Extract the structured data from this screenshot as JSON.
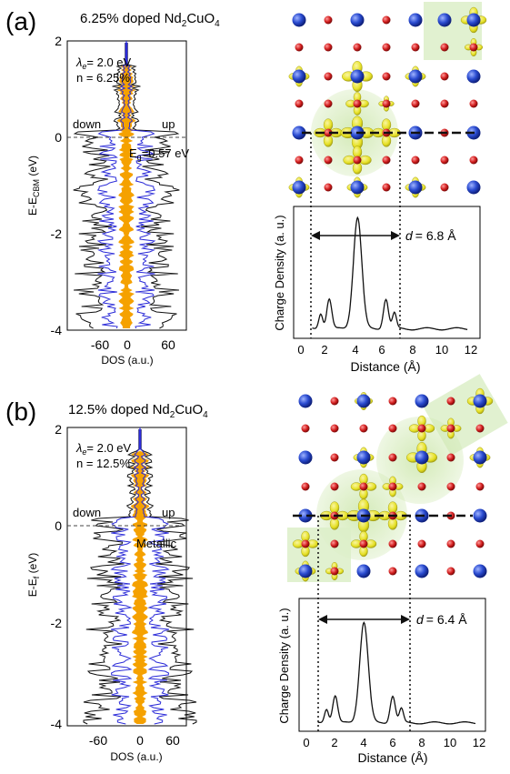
{
  "panels": [
    {
      "letter": "(a)",
      "title": "6.25% doped Nd",
      "title_sub": "2",
      "title_mid": "CuO",
      "title_sub2": "4",
      "dos": {
        "ylabel": "E-E",
        "ylabel_sub": "CBM",
        "ylabel_unit": " (eV)",
        "xlabel": "DOS (a.u.)",
        "yticks": [
          "2",
          "0",
          "-2",
          "-4"
        ],
        "xticks": [
          "-60",
          "0",
          "60"
        ],
        "lambda": "= 2.0 eV",
        "n": "n = 6.25%",
        "down": "down",
        "up": "up",
        "gap": "E",
        "gap_sub": "g",
        "gap_value": "=0.57 eV"
      },
      "charge": {
        "ylabel": "Charge Density (a. u.)",
        "xlabel": "Distance (Å)",
        "xticks": [
          "0",
          "2",
          "4",
          "6",
          "8",
          "10",
          "12"
        ],
        "d_label": "d",
        "d_value": "= 6.8 Å"
      }
    },
    {
      "letter": "(b)",
      "title": "12.5% doped Nd",
      "title_sub": "2",
      "title_mid": "CuO",
      "title_sub2": "4",
      "dos": {
        "ylabel": "E-E",
        "ylabel_sub": "f",
        "ylabel_unit": " (eV)",
        "xlabel": "DOS (a.u.)",
        "yticks": [
          "2",
          "0",
          "-2",
          "-4"
        ],
        "xticks": [
          "-60",
          "0",
          "60"
        ],
        "lambda": "= 2.0 eV",
        "n": "n = 12.5%",
        "down": "down",
        "up": "up",
        "metallic": "Metallic"
      },
      "charge": {
        "ylabel": "Charge Density (a. u.)",
        "xlabel": "Distance (Å)",
        "xticks": [
          "0",
          "2",
          "4",
          "6",
          "8",
          "10",
          "12"
        ],
        "d_label": "d",
        "d_value": "= 6.4 Å"
      }
    }
  ],
  "colors": {
    "nd_atom": "#2a4bd0",
    "o_atom": "#d21e1e",
    "isosurface": "#e6e01a",
    "polaron_glow": "#cfe8b0",
    "dos_total": "#111111",
    "dos_projected": "#2b2bd8",
    "dos_polaron": "#f5a100"
  }
}
